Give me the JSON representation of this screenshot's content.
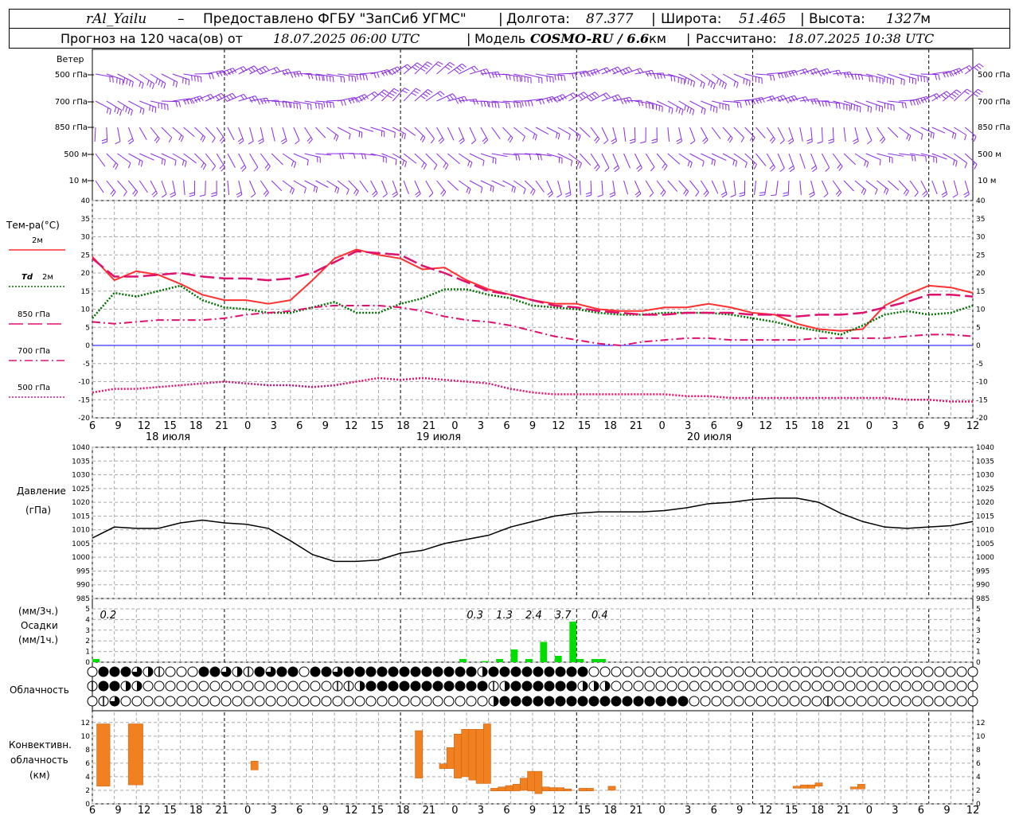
{
  "header": {
    "station": "rAl_Yailu",
    "provider": "Предоставлено ФГБУ \"ЗапСиб УГМС\"",
    "lon_label": "Долгота:",
    "lon_value": "87.377",
    "lat_label": "Широта:",
    "lat_value": "51.465",
    "alt_label": "Высота:",
    "alt_value": "1327",
    "alt_unit": "м",
    "forecast_prefix": "Прогноз на 120 часа(ов) от",
    "forecast_time": "18.07.2025 06:00 UTC",
    "model_label": "Модель",
    "model_name": "COSMO-RU / 6.6",
    "model_unit": "км",
    "calc_label": "Рассчитано:",
    "calc_time": "18.07.2025 10:38 UTC"
  },
  "labels": {
    "wind": "Ветер",
    "wind_levels": [
      "500 гПа",
      "700 гПа",
      "850 гПа",
      "500 м",
      "10 м"
    ],
    "temp": "Тем-ра(°С)",
    "pressure_1": "Давление",
    "pressure_2": "(гПа)",
    "precip_1": "(мм/3ч.)",
    "precip_2": "Осадки",
    "precip_3": "(мм/1ч.)",
    "cloud": "Облачность",
    "conv_1": "Конвективн.",
    "conv_2": "облачность",
    "conv_3": "(км)",
    "days": [
      "18 июля",
      "19 июля",
      "20 июля"
    ]
  },
  "colors": {
    "t2m": "#ff3030",
    "td2m": "#007000",
    "t850": "#e0106e",
    "t700": "#e0106e",
    "t500": "#e0106e",
    "wind": "#8a2be2",
    "pressure": "#000000",
    "precip": "#00dd00",
    "conv": "#f08020",
    "zero": "#0000ff"
  },
  "chart_data": [
    {
      "type": "line",
      "title": "Тем-ра(°С)",
      "x_hours": [
        0,
        3,
        6,
        9,
        12,
        15,
        18,
        21,
        24,
        27,
        30,
        33,
        36,
        39,
        42,
        45,
        48,
        51,
        54,
        57,
        60,
        63,
        66,
        69,
        72,
        75,
        78,
        81,
        84,
        87,
        90,
        93,
        96,
        99,
        102,
        105,
        108,
        111,
        114,
        117,
        120
      ],
      "x_ticks": [
        "6",
        "9",
        "12",
        "15",
        "18",
        "21",
        "0",
        "3",
        "6",
        "9",
        "12",
        "15",
        "18",
        "21",
        "0",
        "3",
        "6",
        "9",
        "12",
        "15",
        "18",
        "21",
        "0",
        "3",
        "6",
        "9",
        "12",
        "15",
        "18",
        "21",
        "0",
        "3",
        "6",
        "9",
        "12"
      ],
      "ylim": [
        -20,
        40
      ],
      "yticks": [
        -20,
        -15,
        -10,
        -5,
        0,
        5,
        10,
        15,
        20,
        25,
        30,
        35,
        40
      ],
      "series": [
        {
          "name": "2м",
          "style": "solid",
          "values": [
            24.5,
            18,
            20.5,
            19.5,
            17,
            14,
            12.5,
            12.5,
            11.5,
            12.5,
            18,
            24,
            26.5,
            25,
            24,
            21,
            21.5,
            18,
            15.5,
            14,
            12.5,
            11.5,
            11.5,
            10,
            9.5,
            9.5,
            10.5,
            10.5,
            11.5,
            10.5,
            9,
            8.5,
            6,
            4.5,
            4,
            4.5,
            11,
            14,
            16.5,
            16,
            14.5
          ]
        },
        {
          "name": "Td 2м",
          "style": "dotted",
          "values": [
            7.5,
            14.5,
            13.5,
            15,
            16.5,
            12.5,
            10.5,
            10,
            9,
            9,
            10.5,
            12,
            9,
            9,
            11.5,
            13,
            15.5,
            15.5,
            14,
            13,
            11,
            10.5,
            10,
            9,
            8.5,
            8.5,
            9,
            9,
            9,
            8.5,
            7.5,
            6.5,
            5,
            4,
            3,
            5.5,
            8.5,
            9.5,
            8.5,
            9,
            11
          ]
        },
        {
          "name": "850 гПа",
          "style": "long-dash",
          "values": [
            24,
            19,
            19,
            19.5,
            20,
            19,
            18.5,
            18.5,
            18,
            18.5,
            20,
            23,
            26,
            25.5,
            25,
            22,
            20,
            17.5,
            15,
            14,
            12.5,
            11,
            10.5,
            9.5,
            9,
            8.5,
            8.5,
            9,
            9,
            9,
            8.5,
            8.5,
            8,
            8.5,
            8.5,
            9,
            10.5,
            12,
            14,
            14,
            13.5
          ]
        },
        {
          "name": "700 гПа",
          "style": "dash-dot",
          "values": [
            6.5,
            6,
            6.5,
            7,
            7,
            7,
            7.5,
            8.5,
            9,
            9.5,
            10.5,
            11,
            11,
            11,
            10.5,
            9.5,
            8,
            7,
            6.5,
            5.5,
            4,
            2.5,
            1.5,
            0.5,
            0,
            1,
            1.5,
            2,
            2,
            1.5,
            1.5,
            1.5,
            1.5,
            2,
            2,
            2,
            2,
            2.5,
            3,
            3,
            2.5
          ]
        },
        {
          "name": "500 гПа",
          "style": "dotted",
          "values": [
            -13,
            -12,
            -12,
            -11.5,
            -11,
            -10.5,
            -10,
            -10.5,
            -11,
            -11,
            -11.5,
            -11,
            -10,
            -9,
            -9.5,
            -9,
            -9.5,
            -10,
            -10.5,
            -12,
            -13,
            -13.5,
            -13.5,
            -13.5,
            -13.5,
            -13.5,
            -13.5,
            -14,
            -14,
            -14.5,
            -14.5,
            -14.5,
            -14.5,
            -14.5,
            -14.5,
            -14.5,
            -14.5,
            -15,
            -15,
            -15.5,
            -15.5
          ]
        }
      ]
    },
    {
      "type": "line",
      "title": "Давление (гПа)",
      "ylim": [
        985,
        1040
      ],
      "yticks": [
        985,
        990,
        995,
        1000,
        1005,
        1010,
        1015,
        1020,
        1025,
        1030,
        1035,
        1040
      ],
      "x_hours": [
        0,
        3,
        6,
        9,
        12,
        15,
        18,
        21,
        24,
        27,
        30,
        33,
        36,
        39,
        42,
        45,
        48,
        51,
        54,
        57,
        60,
        63,
        66,
        69,
        72,
        75,
        78,
        81,
        84,
        87,
        90,
        93,
        96,
        99,
        102,
        105,
        108,
        111,
        114,
        117,
        120
      ],
      "values": [
        1007,
        1011,
        1010.5,
        1010.5,
        1012.5,
        1013.5,
        1012.5,
        1012,
        1010.5,
        1006,
        1001,
        998.5,
        998.5,
        999,
        1001.5,
        1002.5,
        1005,
        1006.5,
        1008,
        1011,
        1013,
        1015,
        1016,
        1016.5,
        1016.5,
        1016.5,
        1017,
        1018,
        1019.5,
        1020,
        1021,
        1021.5,
        1021.5,
        1020,
        1016,
        1013,
        1011,
        1010.5,
        1011,
        1011.5,
        1013
      ]
    },
    {
      "type": "bar",
      "title": "Осадки (мм/3ч.) / (мм/1ч.)",
      "ylim": [
        0,
        5
      ],
      "yticks": [
        0,
        1,
        2,
        3,
        4,
        5
      ],
      "hours": [
        0.5,
        50.5,
        53.5,
        55.5,
        57.5,
        59.5,
        61.5,
        63.5,
        65.5,
        66.5
      ],
      "values": [
        0.3,
        0.3,
        0.1,
        0.3,
        1.2,
        0.3,
        1.9,
        0.6,
        3.8,
        0.3
      ],
      "totals_3h": [
        {
          "hour": 1.5,
          "label": "0.2"
        },
        {
          "hour": 51.5,
          "label": "0.3"
        },
        {
          "hour": 55.5,
          "label": "1.3"
        },
        {
          "hour": 59.5,
          "label": "2.4"
        },
        {
          "hour": 63.5,
          "label": "3.7"
        },
        {
          "hour": 68.5,
          "label": "0.4"
        }
      ],
      "extra_bars": [
        {
          "hour": 68.5,
          "value": 0.3
        },
        {
          "hour": 69.5,
          "value": 0.3
        }
      ]
    },
    {
      "type": "table",
      "title": "Облачность",
      "columns": 80,
      "rows": [
        {
          "level": "верхний",
          "covers": [
            0,
            4,
            4,
            4,
            3,
            2,
            1,
            0,
            0,
            0,
            4,
            4,
            3,
            2,
            1,
            4,
            3,
            4,
            4,
            0,
            4,
            4,
            3,
            4,
            4,
            4,
            4,
            4,
            4,
            4,
            4,
            4,
            4,
            4,
            4,
            2,
            4,
            4,
            4,
            4,
            4,
            4,
            4,
            4,
            4,
            0,
            0,
            0,
            0,
            0,
            0,
            0,
            0,
            0,
            0,
            0,
            0,
            0,
            0,
            0,
            0,
            0,
            0,
            0,
            0,
            0,
            0,
            0,
            0,
            0,
            0,
            0,
            0,
            0,
            0,
            0,
            0,
            0,
            0,
            0
          ]
        },
        {
          "level": "средний",
          "covers": [
            1,
            4,
            4,
            2,
            2,
            0,
            0,
            0,
            0,
            0,
            0,
            0,
            0,
            0,
            0,
            0,
            0,
            0,
            0,
            0,
            0,
            0,
            1,
            1,
            2,
            4,
            4,
            4,
            4,
            4,
            4,
            4,
            4,
            4,
            4,
            4,
            1,
            2,
            4,
            4,
            4,
            4,
            4,
            4,
            2,
            2,
            2,
            0,
            0,
            0,
            0,
            0,
            0,
            0,
            0,
            0,
            0,
            0,
            0,
            0,
            0,
            0,
            0,
            0,
            0,
            0,
            0,
            0,
            0,
            0,
            0,
            0,
            0,
            0,
            0,
            0,
            0,
            0,
            0,
            0
          ]
        },
        {
          "level": "нижний",
          "covers": [
            0,
            1,
            3,
            0,
            0,
            0,
            0,
            0,
            0,
            0,
            0,
            0,
            0,
            0,
            0,
            0,
            0,
            0,
            0,
            0,
            0,
            0,
            0,
            0,
            0,
            0,
            0,
            0,
            0,
            0,
            0,
            0,
            0,
            0,
            0,
            0,
            2,
            4,
            4,
            4,
            4,
            4,
            4,
            4,
            4,
            4,
            4,
            4,
            4,
            4,
            4,
            4,
            4,
            4,
            0,
            0,
            0,
            0,
            0,
            0,
            0,
            0,
            0,
            0,
            0,
            0,
            1,
            0,
            0,
            0,
            0,
            0,
            0,
            0,
            0,
            0,
            0,
            0,
            0,
            0
          ]
        }
      ]
    },
    {
      "type": "bar",
      "title": "Конвективн. облачность (км)",
      "ylim": [
        0,
        13
      ],
      "yticks": [
        0,
        2,
        4,
        6,
        8,
        10,
        12
      ],
      "bars": [
        {
          "h0": 0.6,
          "h1": 2.4,
          "base": 2.6,
          "top": 11.8
        },
        {
          "h0": 4.9,
          "h1": 6.9,
          "base": 2.8,
          "top": 11.8
        },
        {
          "h0": 21.6,
          "h1": 22.6,
          "base": 5.0,
          "top": 6.3
        },
        {
          "h0": 44.0,
          "h1": 45.0,
          "base": 3.8,
          "top": 10.8
        },
        {
          "h0": 47.3,
          "h1": 48.3,
          "base": 5.2,
          "top": 5.9
        },
        {
          "h0": 48.3,
          "h1": 49.3,
          "base": 5.2,
          "top": 8.3
        },
        {
          "h0": 49.3,
          "h1": 50.3,
          "base": 3.8,
          "top": 10.3
        },
        {
          "h0": 50.3,
          "h1": 51.3,
          "base": 4.0,
          "top": 11.0
        },
        {
          "h0": 51.3,
          "h1": 52.3,
          "base": 3.5,
          "top": 11.0
        },
        {
          "h0": 52.3,
          "h1": 53.3,
          "base": 3.0,
          "top": 11.0
        },
        {
          "h0": 53.3,
          "h1": 54.3,
          "base": 3.0,
          "top": 11.8
        },
        {
          "h0": 54.3,
          "h1": 55.3,
          "base": 1.9,
          "top": 2.3
        },
        {
          "h0": 55.3,
          "h1": 56.3,
          "base": 1.9,
          "top": 2.5
        },
        {
          "h0": 56.3,
          "h1": 57.3,
          "base": 1.9,
          "top": 2.7
        },
        {
          "h0": 57.3,
          "h1": 58.3,
          "base": 1.9,
          "top": 2.9
        },
        {
          "h0": 58.3,
          "h1": 59.3,
          "base": 2.0,
          "top": 3.8
        },
        {
          "h0": 59.3,
          "h1": 60.3,
          "base": 1.9,
          "top": 4.8
        },
        {
          "h0": 60.3,
          "h1": 61.3,
          "base": 1.5,
          "top": 4.8
        },
        {
          "h0": 61.3,
          "h1": 62.3,
          "base": 1.9,
          "top": 2.5
        },
        {
          "h0": 62.3,
          "h1": 63.3,
          "base": 1.9,
          "top": 2.4
        },
        {
          "h0": 63.3,
          "h1": 64.3,
          "base": 1.9,
          "top": 2.4
        },
        {
          "h0": 64.3,
          "h1": 65.3,
          "base": 1.9,
          "top": 2.2
        },
        {
          "h0": 66.3,
          "h1": 67.3,
          "base": 1.9,
          "top": 2.3
        },
        {
          "h0": 67.3,
          "h1": 68.3,
          "base": 1.9,
          "top": 2.3
        },
        {
          "h0": 70.3,
          "h1": 71.3,
          "base": 2.0,
          "top": 2.6
        },
        {
          "h0": 95.5,
          "h1": 96.5,
          "base": 2.3,
          "top": 2.6
        },
        {
          "h0": 96.5,
          "h1": 97.5,
          "base": 2.3,
          "top": 2.8
        },
        {
          "h0": 97.5,
          "h1": 98.5,
          "base": 2.3,
          "top": 2.8
        },
        {
          "h0": 98.5,
          "h1": 99.5,
          "base": 2.6,
          "top": 3.1
        },
        {
          "h0": 103.3,
          "h1": 104.3,
          "base": 2.2,
          "top": 2.5
        },
        {
          "h0": 104.3,
          "h1": 105.3,
          "base": 2.2,
          "top": 2.9
        }
      ]
    }
  ]
}
